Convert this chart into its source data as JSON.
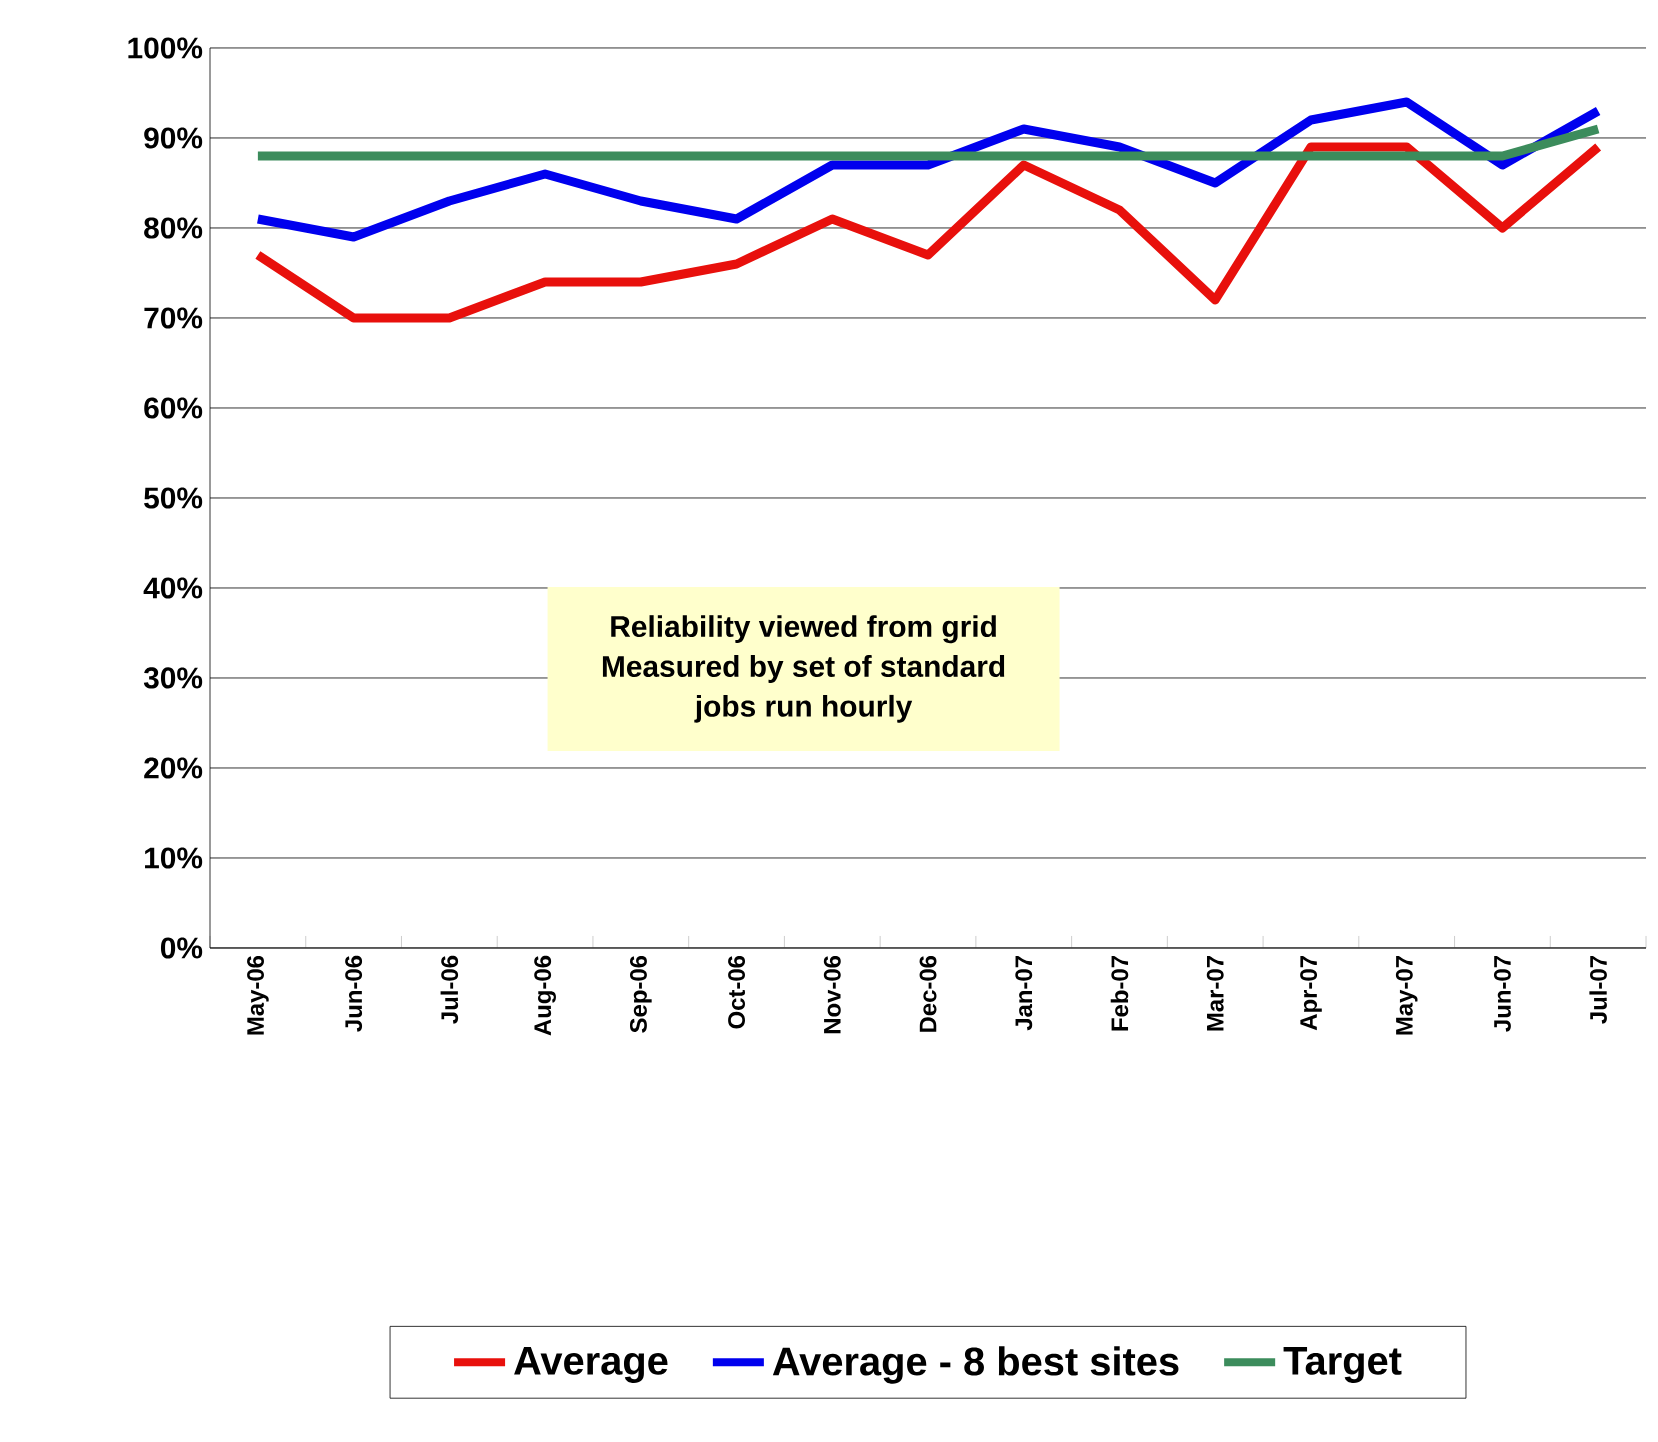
{
  "chart_data": {
    "type": "line",
    "categories": [
      "May-06",
      "Jun-06",
      "Jul-06",
      "Aug-06",
      "Sep-06",
      "Oct-06",
      "Nov-06",
      "Dec-06",
      "Jan-07",
      "Feb-07",
      "Mar-07",
      "Apr-07",
      "May-07",
      "Jun-07",
      "Jul-07"
    ],
    "series": [
      {
        "name": "Average",
        "color": "#e8100c",
        "values": [
          77,
          70,
          70,
          74,
          74,
          76,
          81,
          77,
          87,
          82,
          72,
          89,
          89,
          80,
          89
        ]
      },
      {
        "name": "Average - 8 best sites",
        "color": "#0000ee",
        "values": [
          81,
          79,
          83,
          86,
          83,
          81,
          87,
          87,
          91,
          89,
          85,
          92,
          94,
          87,
          93
        ]
      },
      {
        "name": "Target",
        "color": "#3c8c5c",
        "values": [
          88,
          88,
          88,
          88,
          88,
          88,
          88,
          88,
          88,
          88,
          88,
          88,
          88,
          88,
          91
        ]
      }
    ],
    "ylim": [
      0,
      100
    ],
    "yticks": [
      {
        "value": 0,
        "label": "0%"
      },
      {
        "value": 10,
        "label": "10%"
      },
      {
        "value": 20,
        "label": "20%"
      },
      {
        "value": 30,
        "label": "30%"
      },
      {
        "value": 40,
        "label": "40%"
      },
      {
        "value": 50,
        "label": "50%"
      },
      {
        "value": 60,
        "label": "60%"
      },
      {
        "value": 70,
        "label": "70%"
      },
      {
        "value": 80,
        "label": "80%"
      },
      {
        "value": 90,
        "label": "90%"
      },
      {
        "value": 100,
        "label": "100%"
      }
    ],
    "grid": "y",
    "legend": "bottom",
    "marker": "none",
    "line_style": "solid",
    "annotations": [
      "Reliability viewed from grid",
      "Measured by set of standard",
      "jobs run hourly"
    ]
  }
}
